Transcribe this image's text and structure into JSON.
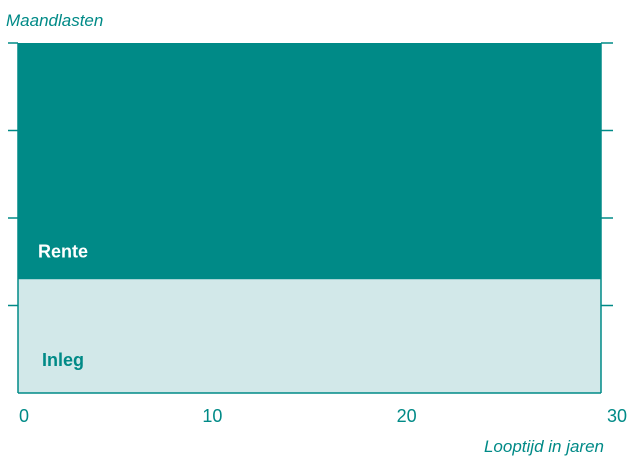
{
  "chart_data": {
    "type": "area",
    "stacked": true,
    "ylabel": "Maandlasten",
    "xlabel": "Looptijd in jaren",
    "x": [
      0,
      30
    ],
    "xlim": [
      0,
      30
    ],
    "xticks": [
      0,
      10,
      20,
      30
    ],
    "ylim": [
      0,
      4
    ],
    "yticks": [
      0,
      1,
      2,
      3,
      4
    ],
    "grid": false,
    "series": [
      {
        "name": "Inleg",
        "values": [
          1.3,
          1.3
        ],
        "color": "#d2e8e9",
        "label_color": "#008a87"
      },
      {
        "name": "Rente",
        "values": [
          2.7,
          2.7
        ],
        "color": "#008a87",
        "label_color": "#ffffff"
      }
    ],
    "axis_color": "#008a87",
    "text_color": "#008a87"
  }
}
